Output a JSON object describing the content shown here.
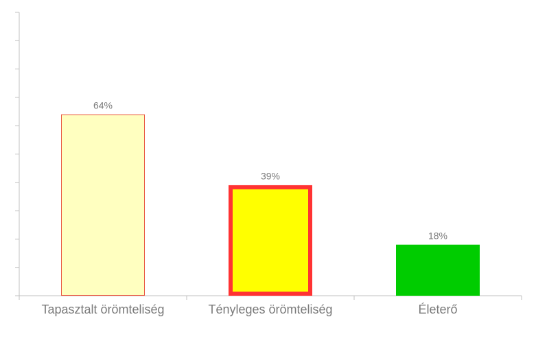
{
  "chart_data": {
    "type": "bar",
    "categories": [
      "Tapasztalt örömteliség",
      "Tényleges örömteliség",
      "Életerő"
    ],
    "values": [
      64,
      39,
      18
    ],
    "value_labels": [
      "64%",
      "39%",
      "18%"
    ],
    "colors": [
      "#ffffc0",
      "#ffff00",
      "#00cc00"
    ],
    "edgecolors": [
      "#e8553f",
      "#ff3333",
      null
    ],
    "edgewidths": [
      1,
      6,
      0
    ],
    "ylim": [
      0,
      100
    ],
    "yticks": [
      0,
      10,
      20,
      30,
      40,
      50,
      60,
      70,
      80,
      90,
      100
    ],
    "grid": false
  }
}
